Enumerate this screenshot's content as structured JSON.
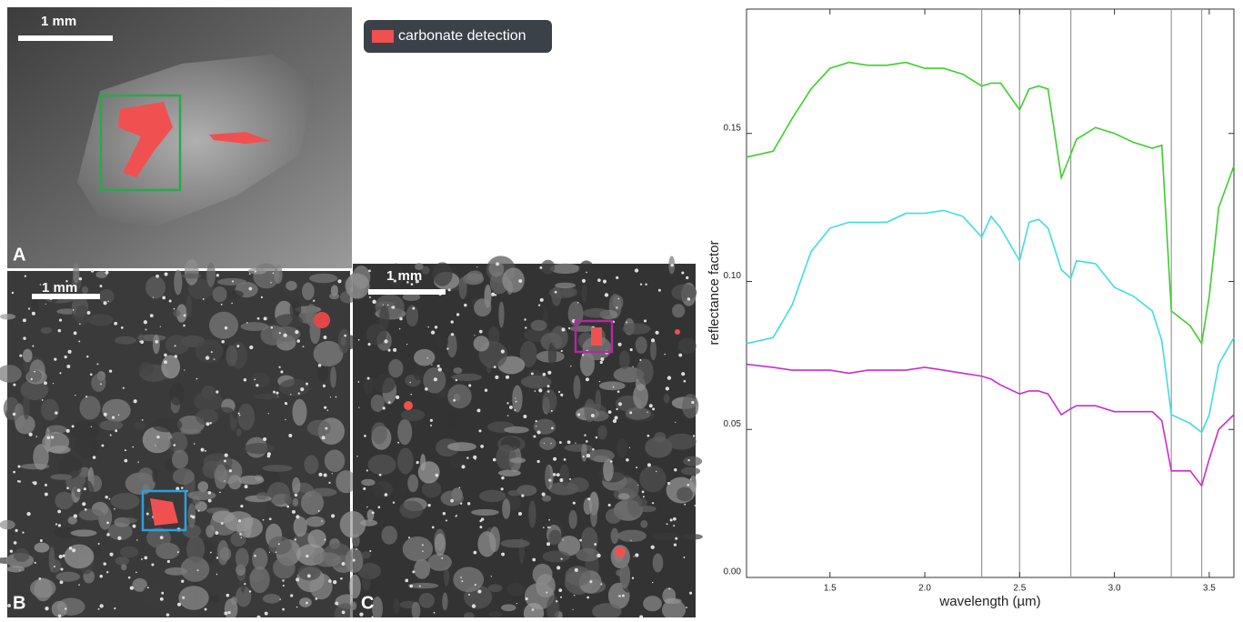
{
  "images": {
    "legend": "carbonate detection",
    "panels": [
      {
        "label": "A",
        "scale": "1 mm"
      },
      {
        "label": "B",
        "scale": "1 mm"
      },
      {
        "label": "C",
        "scale": "1 mm"
      }
    ]
  },
  "chart_data": {
    "type": "line",
    "x_label": "wavelength (µm)",
    "y_label": "reflectance factor",
    "x": [
      1.06,
      1.2,
      1.3,
      1.4,
      1.5,
      1.6,
      1.7,
      1.8,
      1.9,
      2.0,
      2.1,
      2.2,
      2.3,
      2.35,
      2.4,
      2.5,
      2.55,
      2.6,
      2.65,
      2.72,
      2.77,
      2.8,
      2.9,
      3.0,
      3.1,
      3.2,
      3.25,
      3.3,
      3.4,
      3.46,
      3.5,
      3.55,
      3.63
    ],
    "series": [
      {
        "color": "#3ccf2c",
        "values": [
          0.142,
          0.144,
          0.155,
          0.165,
          0.172,
          0.174,
          0.173,
          0.173,
          0.174,
          0.172,
          0.172,
          0.17,
          0.166,
          0.167,
          0.167,
          0.158,
          0.165,
          0.166,
          0.165,
          0.135,
          0.143,
          0.148,
          0.152,
          0.15,
          0.147,
          0.145,
          0.146,
          0.09,
          0.085,
          0.079,
          0.095,
          0.125,
          0.139
        ]
      },
      {
        "color": "#3fdde0",
        "values": [
          0.079,
          0.081,
          0.092,
          0.11,
          0.118,
          0.12,
          0.12,
          0.12,
          0.123,
          0.123,
          0.124,
          0.122,
          0.115,
          0.122,
          0.118,
          0.107,
          0.12,
          0.121,
          0.118,
          0.104,
          0.101,
          0.107,
          0.106,
          0.098,
          0.095,
          0.09,
          0.08,
          0.055,
          0.052,
          0.049,
          0.055,
          0.072,
          0.081
        ]
      },
      {
        "color": "#cc2ccc",
        "values": [
          0.072,
          0.071,
          0.07,
          0.07,
          0.07,
          0.069,
          0.07,
          0.07,
          0.07,
          0.071,
          0.07,
          0.069,
          0.068,
          0.067,
          0.065,
          0.062,
          0.063,
          0.063,
          0.062,
          0.055,
          0.057,
          0.058,
          0.058,
          0.056,
          0.056,
          0.056,
          0.053,
          0.036,
          0.036,
          0.031,
          0.04,
          0.05,
          0.055
        ]
      }
    ],
    "vlines": [
      2.3,
      2.5,
      2.77,
      3.3,
      3.46
    ],
    "xlim": [
      1.06,
      3.63
    ],
    "ylim": [
      0,
      0.192
    ],
    "xticks": [
      1.5,
      {
        "value": 2,
        "label": "2.0"
      },
      2.5,
      {
        "value": 3,
        "label": "3.0"
      },
      3.5
    ],
    "yticks": [
      {
        "value": 0,
        "label": "0.00"
      },
      0.05,
      {
        "value": 0.1,
        "label": "0.10"
      },
      0.15
    ]
  }
}
